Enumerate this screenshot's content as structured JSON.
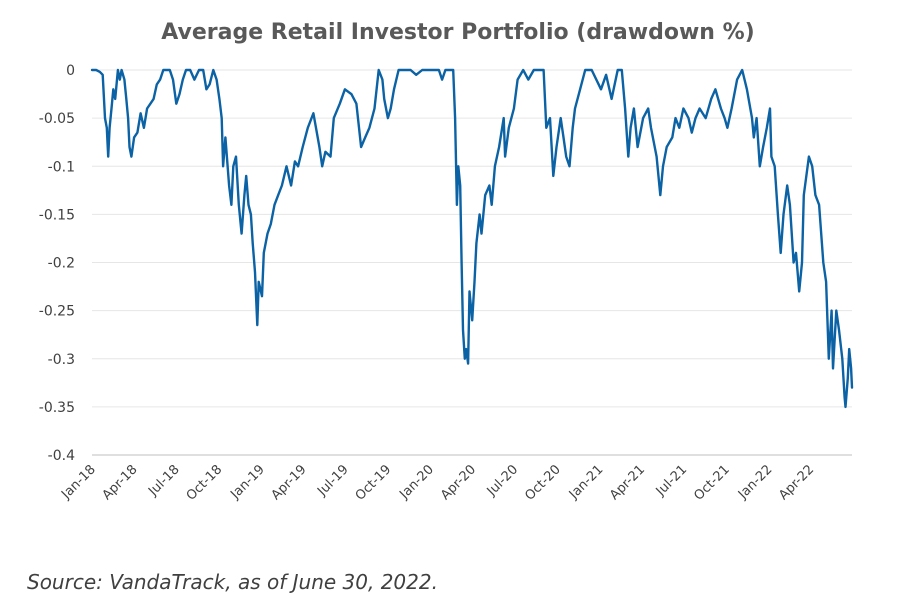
{
  "chart_data": {
    "type": "line",
    "title": "Average Retail Investor Portfolio (drawdown %)",
    "xlabel": "",
    "ylabel": "",
    "ylim": [
      -0.4,
      0
    ],
    "yticks": [
      "0",
      "-0.05",
      "-0.1",
      "-0.15",
      "-0.2",
      "-0.25",
      "-0.3",
      "-0.35",
      "-0.4"
    ],
    "ytick_values": [
      0,
      -0.05,
      -0.1,
      -0.15,
      -0.2,
      -0.25,
      -0.3,
      -0.35,
      -0.4
    ],
    "xlim": [
      "2018-01-01",
      "2022-06-30"
    ],
    "xticks": [
      "Jan-18",
      "Apr-18",
      "Jul-18",
      "Oct-18",
      "Jan-19",
      "Apr-19",
      "Jul-19",
      "Oct-19",
      "Jan-20",
      "Apr-20",
      "Jul-20",
      "Oct-20",
      "Jan-21",
      "Apr-21",
      "Jul-21",
      "Oct-21",
      "Jan-22",
      "Apr-22"
    ],
    "xtick_dates": [
      "2018-01-01",
      "2018-04-01",
      "2018-07-01",
      "2018-10-01",
      "2019-01-01",
      "2019-04-01",
      "2019-07-01",
      "2019-10-01",
      "2020-01-01",
      "2020-04-01",
      "2020-07-01",
      "2020-10-01",
      "2021-01-01",
      "2021-04-01",
      "2021-07-01",
      "2021-10-01",
      "2022-01-01",
      "2022-04-01"
    ],
    "grid": true,
    "legend": "none",
    "series": [
      {
        "color": "#0b62a4",
        "points": [
          [
            "2018-01-01",
            0
          ],
          [
            "2018-01-10",
            0
          ],
          [
            "2018-01-18",
            -0.002
          ],
          [
            "2018-01-24",
            -0.005
          ],
          [
            "2018-01-29",
            -0.05
          ],
          [
            "2018-02-02",
            -0.06
          ],
          [
            "2018-02-05",
            -0.09
          ],
          [
            "2018-02-08",
            -0.06
          ],
          [
            "2018-02-12",
            -0.04
          ],
          [
            "2018-02-16",
            -0.02
          ],
          [
            "2018-02-20",
            -0.03
          ],
          [
            "2018-02-26",
            0
          ],
          [
            "2018-03-02",
            -0.01
          ],
          [
            "2018-03-06",
            0
          ],
          [
            "2018-03-12",
            -0.01
          ],
          [
            "2018-03-16",
            -0.03
          ],
          [
            "2018-03-20",
            -0.05
          ],
          [
            "2018-03-23",
            -0.08
          ],
          [
            "2018-03-27",
            -0.09
          ],
          [
            "2018-04-02",
            -0.07
          ],
          [
            "2018-04-09",
            -0.065
          ],
          [
            "2018-04-16",
            -0.045
          ],
          [
            "2018-04-23",
            -0.06
          ],
          [
            "2018-04-30",
            -0.04
          ],
          [
            "2018-05-07",
            -0.035
          ],
          [
            "2018-05-14",
            -0.03
          ],
          [
            "2018-05-21",
            -0.015
          ],
          [
            "2018-05-28",
            -0.01
          ],
          [
            "2018-06-04",
            0
          ],
          [
            "2018-06-11",
            0
          ],
          [
            "2018-06-18",
            0
          ],
          [
            "2018-06-25",
            -0.01
          ],
          [
            "2018-07-02",
            -0.035
          ],
          [
            "2018-07-09",
            -0.025
          ],
          [
            "2018-07-16",
            -0.01
          ],
          [
            "2018-07-23",
            0
          ],
          [
            "2018-08-01",
            0
          ],
          [
            "2018-08-10",
            -0.01
          ],
          [
            "2018-08-20",
            0
          ],
          [
            "2018-08-29",
            0
          ],
          [
            "2018-09-05",
            -0.02
          ],
          [
            "2018-09-12",
            -0.015
          ],
          [
            "2018-09-20",
            0
          ],
          [
            "2018-09-27",
            -0.01
          ],
          [
            "2018-10-03",
            -0.03
          ],
          [
            "2018-10-08",
            -0.05
          ],
          [
            "2018-10-11",
            -0.1
          ],
          [
            "2018-10-16",
            -0.07
          ],
          [
            "2018-10-24",
            -0.12
          ],
          [
            "2018-10-29",
            -0.14
          ],
          [
            "2018-11-02",
            -0.1
          ],
          [
            "2018-11-08",
            -0.09
          ],
          [
            "2018-11-14",
            -0.14
          ],
          [
            "2018-11-20",
            -0.17
          ],
          [
            "2018-11-26",
            -0.13
          ],
          [
            "2018-11-30",
            -0.11
          ],
          [
            "2018-12-05",
            -0.14
          ],
          [
            "2018-12-10",
            -0.15
          ],
          [
            "2018-12-14",
            -0.18
          ],
          [
            "2018-12-19",
            -0.21
          ],
          [
            "2018-12-24",
            -0.265
          ],
          [
            "2018-12-27",
            -0.22
          ],
          [
            "2019-01-03",
            -0.235
          ],
          [
            "2019-01-07",
            -0.19
          ],
          [
            "2019-01-15",
            -0.17
          ],
          [
            "2019-01-22",
            -0.16
          ],
          [
            "2019-01-30",
            -0.14
          ],
          [
            "2019-02-07",
            -0.13
          ],
          [
            "2019-02-15",
            -0.12
          ],
          [
            "2019-02-25",
            -0.1
          ],
          [
            "2019-03-07",
            -0.12
          ],
          [
            "2019-03-15",
            -0.095
          ],
          [
            "2019-03-22",
            -0.1
          ],
          [
            "2019-04-01",
            -0.08
          ],
          [
            "2019-04-12",
            -0.06
          ],
          [
            "2019-04-24",
            -0.045
          ],
          [
            "2019-05-07",
            -0.08
          ],
          [
            "2019-05-13",
            -0.1
          ],
          [
            "2019-05-20",
            -0.085
          ],
          [
            "2019-05-31",
            -0.09
          ],
          [
            "2019-06-07",
            -0.05
          ],
          [
            "2019-06-20",
            -0.035
          ],
          [
            "2019-07-01",
            -0.02
          ],
          [
            "2019-07-15",
            -0.025
          ],
          [
            "2019-07-26",
            -0.035
          ],
          [
            "2019-08-05",
            -0.08
          ],
          [
            "2019-08-14",
            -0.07
          ],
          [
            "2019-08-23",
            -0.06
          ],
          [
            "2019-09-03",
            -0.04
          ],
          [
            "2019-09-12",
            0
          ],
          [
            "2019-09-20",
            -0.01
          ],
          [
            "2019-09-24",
            -0.03
          ],
          [
            "2019-10-02",
            -0.05
          ],
          [
            "2019-10-08",
            -0.04
          ],
          [
            "2019-10-15",
            -0.02
          ],
          [
            "2019-10-25",
            0
          ],
          [
            "2019-11-05",
            0
          ],
          [
            "2019-11-20",
            0
          ],
          [
            "2019-12-02",
            -0.005
          ],
          [
            "2019-12-15",
            0
          ],
          [
            "2020-01-01",
            0
          ],
          [
            "2020-01-20",
            0
          ],
          [
            "2020-01-27",
            -0.01
          ],
          [
            "2020-02-03",
            0
          ],
          [
            "2020-02-14",
            0
          ],
          [
            "2020-02-20",
            0
          ],
          [
            "2020-02-24",
            -0.05
          ],
          [
            "2020-02-28",
            -0.14
          ],
          [
            "2020-03-02",
            -0.1
          ],
          [
            "2020-03-06",
            -0.12
          ],
          [
            "2020-03-09",
            -0.2
          ],
          [
            "2020-03-12",
            -0.27
          ],
          [
            "2020-03-16",
            -0.3
          ],
          [
            "2020-03-19",
            -0.29
          ],
          [
            "2020-03-23",
            -0.305
          ],
          [
            "2020-03-26",
            -0.23
          ],
          [
            "2020-04-01",
            -0.26
          ],
          [
            "2020-04-06",
            -0.22
          ],
          [
            "2020-04-10",
            -0.18
          ],
          [
            "2020-04-17",
            -0.15
          ],
          [
            "2020-04-21",
            -0.17
          ],
          [
            "2020-04-29",
            -0.13
          ],
          [
            "2020-05-08",
            -0.12
          ],
          [
            "2020-05-13",
            -0.14
          ],
          [
            "2020-05-20",
            -0.1
          ],
          [
            "2020-05-29",
            -0.08
          ],
          [
            "2020-06-08",
            -0.05
          ],
          [
            "2020-06-11",
            -0.09
          ],
          [
            "2020-06-19",
            -0.06
          ],
          [
            "2020-06-30",
            -0.04
          ],
          [
            "2020-07-08",
            -0.01
          ],
          [
            "2020-07-20",
            0
          ],
          [
            "2020-07-31",
            -0.01
          ],
          [
            "2020-08-12",
            0
          ],
          [
            "2020-08-26",
            0
          ],
          [
            "2020-09-02",
            0
          ],
          [
            "2020-09-08",
            -0.06
          ],
          [
            "2020-09-16",
            -0.05
          ],
          [
            "2020-09-23",
            -0.11
          ],
          [
            "2020-09-30",
            -0.08
          ],
          [
            "2020-10-09",
            -0.05
          ],
          [
            "2020-10-15",
            -0.07
          ],
          [
            "2020-10-21",
            -0.09
          ],
          [
            "2020-10-28",
            -0.1
          ],
          [
            "2020-11-04",
            -0.06
          ],
          [
            "2020-11-09",
            -0.04
          ],
          [
            "2020-11-20",
            -0.02
          ],
          [
            "2020-12-01",
            0
          ],
          [
            "2020-12-15",
            0
          ],
          [
            "2021-01-04",
            -0.02
          ],
          [
            "2021-01-15",
            -0.005
          ],
          [
            "2021-01-27",
            -0.03
          ],
          [
            "2021-02-09",
            0
          ],
          [
            "2021-02-18",
            0
          ],
          [
            "2021-02-25",
            -0.04
          ],
          [
            "2021-03-04",
            -0.09
          ],
          [
            "2021-03-09",
            -0.06
          ],
          [
            "2021-03-16",
            -0.04
          ],
          [
            "2021-03-24",
            -0.08
          ],
          [
            "2021-04-05",
            -0.05
          ],
          [
            "2021-04-16",
            -0.04
          ],
          [
            "2021-04-22",
            -0.06
          ],
          [
            "2021-05-04",
            -0.09
          ],
          [
            "2021-05-12",
            -0.13
          ],
          [
            "2021-05-18",
            -0.1
          ],
          [
            "2021-05-26",
            -0.08
          ],
          [
            "2021-06-07",
            -0.07
          ],
          [
            "2021-06-14",
            -0.05
          ],
          [
            "2021-06-22",
            -0.06
          ],
          [
            "2021-07-01",
            -0.04
          ],
          [
            "2021-07-12",
            -0.05
          ],
          [
            "2021-07-19",
            -0.065
          ],
          [
            "2021-07-27",
            -0.05
          ],
          [
            "2021-08-05",
            -0.04
          ],
          [
            "2021-08-18",
            -0.05
          ],
          [
            "2021-08-30",
            -0.03
          ],
          [
            "2021-09-08",
            -0.02
          ],
          [
            "2021-09-20",
            -0.04
          ],
          [
            "2021-09-28",
            -0.05
          ],
          [
            "2021-10-04",
            -0.06
          ],
          [
            "2021-10-13",
            -0.04
          ],
          [
            "2021-10-25",
            -0.01
          ],
          [
            "2021-11-05",
            0
          ],
          [
            "2021-11-15",
            -0.02
          ],
          [
            "2021-11-26",
            -0.05
          ],
          [
            "2021-11-30",
            -0.07
          ],
          [
            "2021-12-06",
            -0.05
          ],
          [
            "2021-12-13",
            -0.1
          ],
          [
            "2021-12-20",
            -0.08
          ],
          [
            "2021-12-28",
            -0.06
          ],
          [
            "2022-01-04",
            -0.04
          ],
          [
            "2022-01-07",
            -0.09
          ],
          [
            "2022-01-14",
            -0.1
          ],
          [
            "2022-01-21",
            -0.15
          ],
          [
            "2022-01-27",
            -0.19
          ],
          [
            "2022-02-02",
            -0.15
          ],
          [
            "2022-02-10",
            -0.12
          ],
          [
            "2022-02-16",
            -0.14
          ],
          [
            "2022-02-24",
            -0.2
          ],
          [
            "2022-03-01",
            -0.19
          ],
          [
            "2022-03-08",
            -0.23
          ],
          [
            "2022-03-14",
            -0.2
          ],
          [
            "2022-03-18",
            -0.13
          ],
          [
            "2022-03-29",
            -0.09
          ],
          [
            "2022-04-05",
            -0.1
          ],
          [
            "2022-04-12",
            -0.13
          ],
          [
            "2022-04-20",
            -0.14
          ],
          [
            "2022-04-26",
            -0.18
          ],
          [
            "2022-04-29",
            -0.2
          ],
          [
            "2022-05-05",
            -0.22
          ],
          [
            "2022-05-11",
            -0.3
          ],
          [
            "2022-05-17",
            -0.25
          ],
          [
            "2022-05-20",
            -0.31
          ],
          [
            "2022-05-27",
            -0.25
          ],
          [
            "2022-06-02",
            -0.27
          ],
          [
            "2022-06-09",
            -0.3
          ],
          [
            "2022-06-14",
            -0.34
          ],
          [
            "2022-06-16",
            -0.35
          ],
          [
            "2022-06-21",
            -0.32
          ],
          [
            "2022-06-24",
            -0.29
          ],
          [
            "2022-06-28",
            -0.31
          ],
          [
            "2022-06-30",
            -0.33
          ]
        ]
      }
    ]
  },
  "footer": {
    "source": "Source: VandaTrack, as of June 30, 2022."
  }
}
